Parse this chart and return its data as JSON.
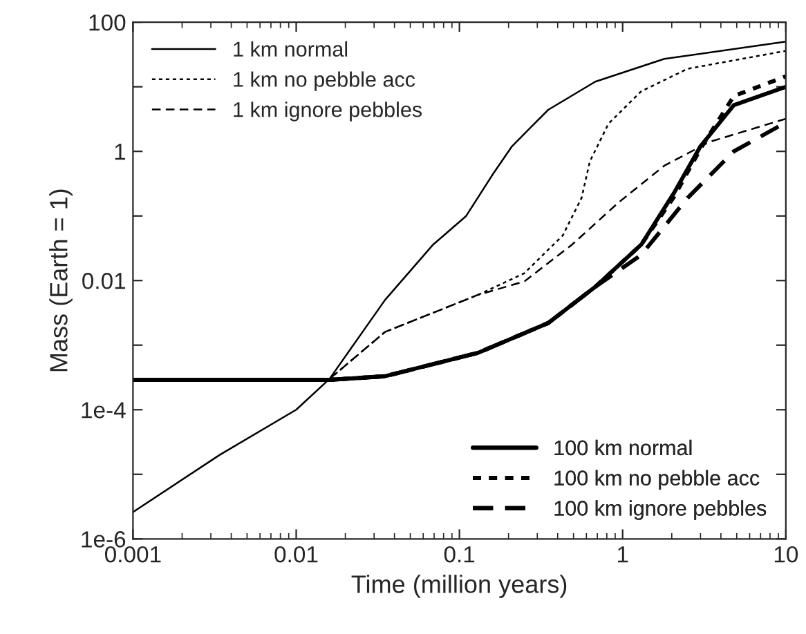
{
  "chart_data": {
    "type": "line",
    "xlabel": "Time (million years)",
    "ylabel": "Mass (Earth = 1)",
    "log": "xy",
    "xlim": [
      0.001,
      10
    ],
    "xticks": [
      0.001,
      0.01,
      0.1,
      1,
      10
    ],
    "ylim": [
      1e-06,
      100
    ],
    "yticks": [
      {
        "value": 1e-06,
        "label": "1e-6"
      },
      {
        "value": 1e-05,
        "label": null
      },
      {
        "value": 0.0001,
        "label": "1e-4"
      },
      {
        "value": 0.001,
        "label": null
      },
      {
        "value": 0.01,
        "label": "0.01"
      },
      {
        "value": 0.1,
        "label": null
      },
      {
        "value": 1,
        "label": "1"
      },
      {
        "value": 10,
        "label": null
      },
      {
        "value": 100,
        "label": "100"
      }
    ],
    "legend": [
      "top left",
      "bottom right"
    ],
    "grid": false,
    "series": [
      {
        "name": "1 km normal",
        "color": "#000000",
        "line_style": "solid",
        "x": [
          0.001,
          0.0034,
          0.01,
          0.016,
          0.035,
          0.069,
          0.11,
          0.16,
          0.21,
          0.35,
          0.68,
          1.8,
          10
        ],
        "values": [
          2.6e-06,
          2e-05,
          0.0001,
          0.0003,
          0.005,
          0.036,
          0.1,
          0.44,
          1.2,
          4.4,
          12,
          27,
          50
        ]
      },
      {
        "name": "1 km no pebble acc",
        "color": "#000000",
        "line_style": "dotted",
        "x": [
          0.016,
          0.035,
          0.13,
          0.25,
          0.43,
          0.56,
          0.63,
          0.82,
          1.3,
          2.5,
          10
        ],
        "values": [
          0.0003,
          0.0016,
          0.006,
          0.013,
          0.05,
          0.19,
          0.7,
          2.7,
          8.5,
          19,
          36
        ]
      },
      {
        "name": "1 km ignore pebbles",
        "color": "#000000",
        "line_style": "dashed",
        "x": [
          0.016,
          0.035,
          0.13,
          0.25,
          0.49,
          0.94,
          1.8,
          3.4,
          10
        ],
        "values": [
          0.0003,
          0.0016,
          0.006,
          0.0097,
          0.036,
          0.16,
          0.6,
          1.4,
          3.2
        ]
      },
      {
        "name": "100 km normal",
        "color": "#000000",
        "line_style": "solid",
        "x": [
          0.001,
          0.016,
          0.035,
          0.13,
          0.35,
          0.68,
          1.3,
          2.07,
          3.0,
          4.8,
          10
        ],
        "values": [
          0.00029,
          0.00029,
          0.00033,
          0.00076,
          0.0022,
          0.008,
          0.036,
          0.23,
          1.2,
          5.2,
          10
        ]
      },
      {
        "name": "100 km no pebble acc",
        "color": "#000000",
        "line_style": "dotted",
        "x": [
          0.001,
          0.016,
          0.035,
          0.13,
          0.35,
          0.68,
          1.3,
          2.07,
          3.0,
          4.8,
          10
        ],
        "values": [
          0.00029,
          0.00029,
          0.00033,
          0.00076,
          0.0022,
          0.008,
          0.036,
          0.2,
          1.1,
          7.2,
          14.5
        ]
      },
      {
        "name": "100 km ignore pebbles",
        "color": "#000000",
        "line_style": "dashed",
        "x": [
          0.001,
          0.016,
          0.035,
          0.13,
          0.35,
          0.68,
          1.3,
          2.5,
          4.8,
          10
        ],
        "values": [
          0.00029,
          0.00029,
          0.00033,
          0.00076,
          0.0022,
          0.008,
          0.025,
          0.19,
          1,
          2.8
        ]
      }
    ]
  }
}
